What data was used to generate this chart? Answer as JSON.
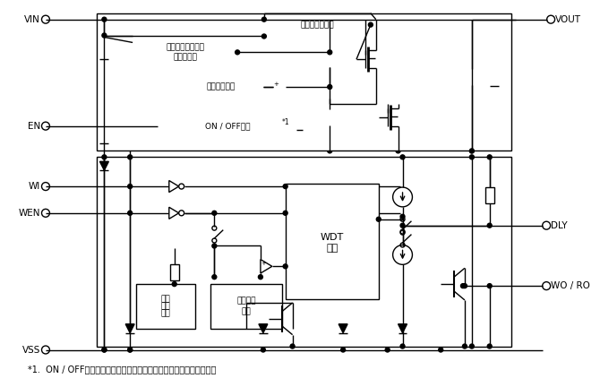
{
  "footnote": "*1.  ON / OFF回路は内部回路および出力トランジスタを制御します。",
  "labels": {
    "VIN": "VIN",
    "VOUT": "VOUT",
    "EN": "EN",
    "WI": "WI",
    "WEN": "WEN",
    "VSS": "VSS",
    "DLY": "DLY",
    "WORO": "WO / RO",
    "box1": "過電流保護回路",
    "box2_l1": "サーマルシャット",
    "box2_l2": "ダウン回路",
    "box3": "基準電圧回路",
    "box4": "ON / OFF回路",
    "box5_l1": "WDT",
    "box5_l2": "回路",
    "box6_l1": "基準",
    "box6_l2": "電圧",
    "box6_l3": "回路",
    "box7_l1": "電圧検出",
    "box7_l2": "回路",
    "note1": "*1"
  },
  "fig_width": 6.7,
  "fig_height": 4.32,
  "dpi": 100,
  "bg_color": "#ffffff"
}
